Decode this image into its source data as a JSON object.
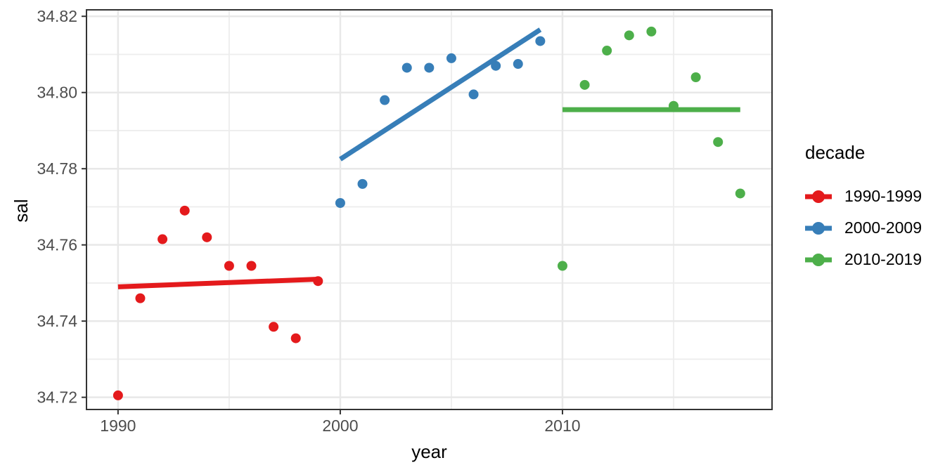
{
  "chart_data": {
    "type": "scatter",
    "title": "",
    "xlabel": "year",
    "ylabel": "sal",
    "legend_title": "decade",
    "legend_position": "right",
    "grid": true,
    "xlim": [
      1988.58,
      2019.43
    ],
    "ylim": [
      34.7168,
      34.8217
    ],
    "x_ticks": [
      1990,
      2000,
      2010
    ],
    "x_tick_labels": [
      "1990",
      "2000",
      "2010"
    ],
    "x_minor_ticks": [
      1995,
      2005,
      2015
    ],
    "y_ticks": [
      34.72,
      34.74,
      34.76,
      34.78,
      34.8,
      34.82
    ],
    "y_tick_labels": [
      "34.72",
      "34.74",
      "34.76",
      "34.78",
      "34.80",
      "34.82"
    ],
    "y_minor_ticks": [
      34.73,
      34.75,
      34.77,
      34.79,
      34.81
    ],
    "series": [
      {
        "name": "1990-1999",
        "color": "#E41A1C",
        "x": [
          1990,
          1991,
          1992,
          1993,
          1994,
          1995,
          1996,
          1997,
          1998,
          1999
        ],
        "y": [
          34.7205,
          34.746,
          34.7615,
          34.769,
          34.762,
          34.7545,
          34.7545,
          34.7385,
          34.7355,
          34.7505
        ],
        "trend": {
          "x1": 1990,
          "y1": 34.749,
          "x2": 1999,
          "y2": 34.751
        }
      },
      {
        "name": "2000-2009",
        "color": "#377EB8",
        "x": [
          2000,
          2001,
          2002,
          2003,
          2004,
          2005,
          2006,
          2007,
          2008,
          2009
        ],
        "y": [
          34.771,
          34.776,
          34.798,
          34.8065,
          34.8065,
          34.809,
          34.7995,
          34.807,
          34.8075,
          34.8135
        ],
        "trend": {
          "x1": 2000,
          "y1": 34.7825,
          "x2": 2009,
          "y2": 34.8165
        }
      },
      {
        "name": "2010-2019",
        "color": "#4DAF4A",
        "x": [
          2010,
          2011,
          2012,
          2013,
          2014,
          2015,
          2016,
          2017,
          2018
        ],
        "y": [
          34.7545,
          34.802,
          34.811,
          34.815,
          34.816,
          34.7965,
          34.804,
          34.787,
          34.7735
        ],
        "trend": {
          "x1": 2010,
          "y1": 34.7955,
          "x2": 2018,
          "y2": 34.7955
        }
      }
    ],
    "style": {
      "panel_border_color": "#333333",
      "grid_major_color": "#E8E8E8",
      "grid_minor_color": "#EDEDED",
      "tick_label_color": "#4D4D4D",
      "background": "#FFFFFF"
    }
  }
}
